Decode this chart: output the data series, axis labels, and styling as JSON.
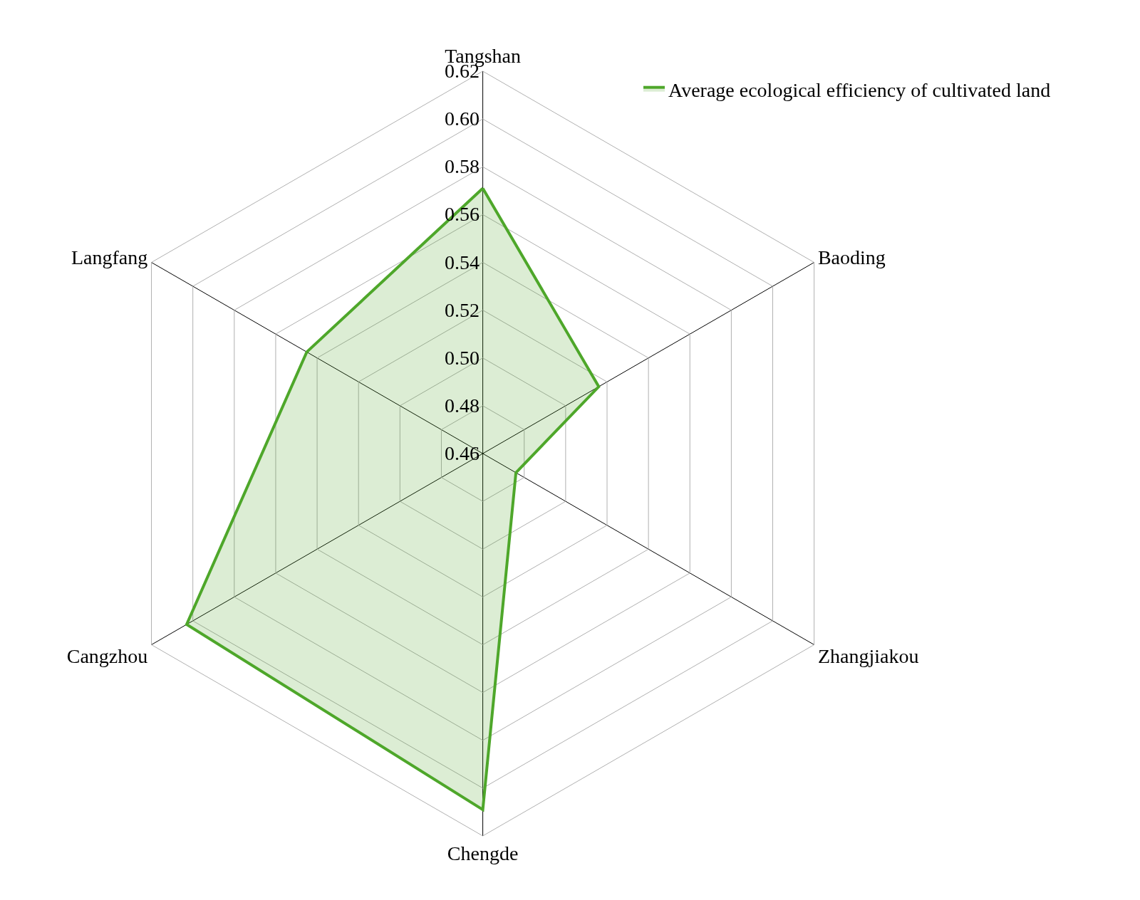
{
  "chart_data": {
    "type": "radar",
    "categories": [
      "Tangshan",
      "Baoding",
      "Zhangjiakou",
      "Chengde",
      "Cangzhou",
      "Langfang"
    ],
    "series": [
      {
        "name": "Average ecological efficiency of cultivated land",
        "color": "#4ea72a",
        "values": [
          0.571,
          0.516,
          0.476,
          0.609,
          0.603,
          0.545
        ]
      }
    ],
    "ylim": [
      0.46,
      0.62
    ],
    "yticks": [
      0.46,
      0.48,
      {
        "value": 0.5,
        "label": "0.50"
      },
      0.52,
      0.54,
      0.56,
      0.58,
      {
        "value": 0.6,
        "label": "0.60"
      },
      0.62
    ],
    "grid": true,
    "legend": "top right",
    "marker": "none"
  }
}
